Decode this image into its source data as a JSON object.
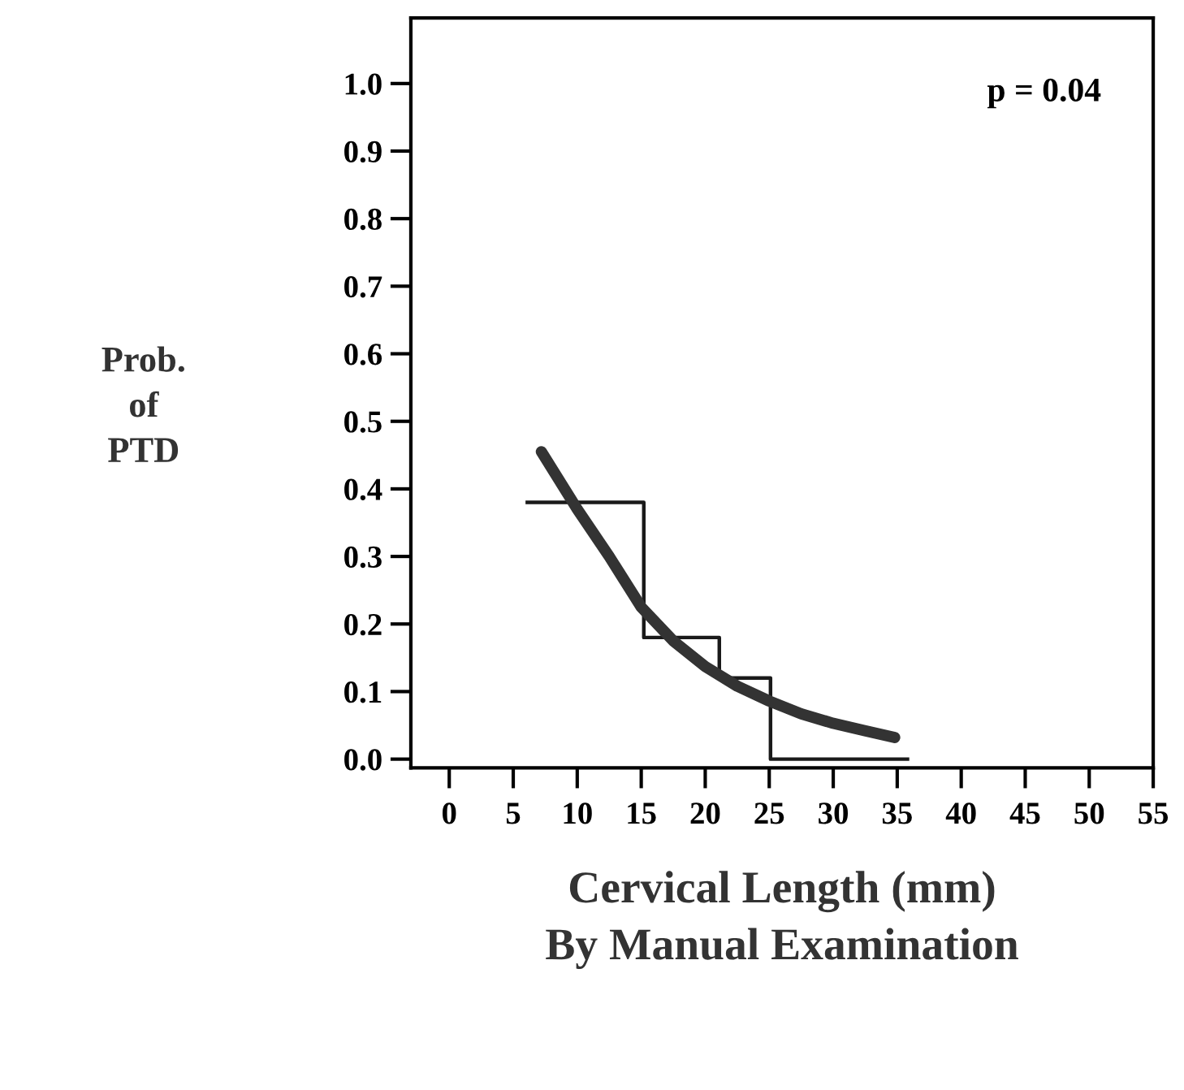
{
  "chart_data": {
    "type": "line",
    "xlabel": "Cervical Length (mm)\nBy Manual Examination",
    "ylabel": "Prob.\nof\nPTD",
    "annotations": [
      "p = 0.04"
    ],
    "series": [
      {
        "type": "step",
        "color": "#1a1a1a",
        "x": [
          6.1,
          15.2,
          21.1,
          25.1,
          35.8
        ],
        "values": [
          0.38,
          0.18,
          0.12,
          0,
          0
        ]
      },
      {
        "type": "line",
        "color": "#333333",
        "x": [
          7.2,
          10,
          12.5,
          15,
          17.5,
          20,
          22.5,
          25,
          27.5,
          30,
          32.5,
          34.8
        ],
        "values": [
          0.455,
          0.37,
          0.3,
          0.225,
          0.175,
          0.137,
          0.108,
          0.086,
          0.067,
          0.053,
          0.042,
          0.032
        ]
      }
    ],
    "xlim": [
      -3,
      55
    ],
    "xticks": [
      0,
      5,
      10,
      15,
      20,
      25,
      30,
      35,
      40,
      45,
      50,
      55
    ],
    "ylim": [
      -0.013,
      1.097
    ],
    "yticks": [
      {
        "value": 0,
        "label": "0.0"
      },
      {
        "value": 0.1,
        "label": "0.1"
      },
      {
        "value": 0.2,
        "label": "0.2"
      },
      {
        "value": 0.3,
        "label": "0.3"
      },
      {
        "value": 0.4,
        "label": "0.4"
      },
      {
        "value": 0.5,
        "label": "0.5"
      },
      {
        "value": 0.6,
        "label": "0.6"
      },
      {
        "value": 0.7,
        "label": "0.7"
      },
      {
        "value": 0.8,
        "label": "0.8"
      },
      {
        "value": 0.9,
        "label": "0.9"
      },
      {
        "value": 1.0,
        "label": "1.0"
      }
    ],
    "grid": false,
    "legend": false
  }
}
